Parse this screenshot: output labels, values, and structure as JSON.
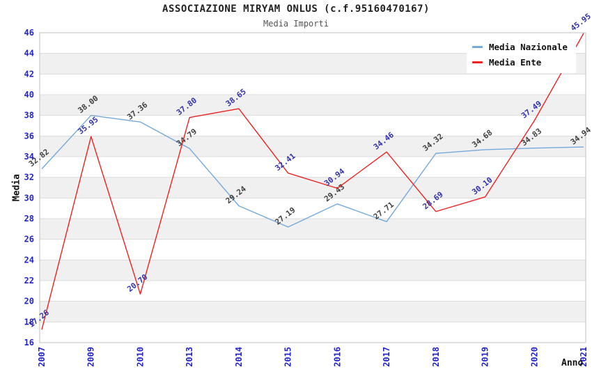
{
  "chart_data": {
    "type": "line",
    "title": "ASSOCIAZIONE MIRYAM ONLUS (c.f.95160470167)",
    "subtitle": "Media Importi",
    "xlabel": "Anno",
    "ylabel": "Media",
    "ylim": [
      16,
      46
    ],
    "yticks": [
      16,
      18,
      20,
      22,
      24,
      26,
      28,
      30,
      32,
      34,
      36,
      38,
      40,
      42,
      44,
      46
    ],
    "grid": "alternating horizontal bands with light gridlines every 2 units",
    "legend_position": "top-right",
    "categories": [
      "2007",
      "2009",
      "2010",
      "2013",
      "2014",
      "2015",
      "2016",
      "2017",
      "2018",
      "2019",
      "2020",
      "2021"
    ],
    "series": [
      {
        "name": "Media Nazionale",
        "color": "#74a9dc",
        "label_color": "#404040",
        "values": [
          32.82,
          38.0,
          37.36,
          34.79,
          29.24,
          27.19,
          29.43,
          27.71,
          34.32,
          34.68,
          34.83,
          34.94
        ]
      },
      {
        "name": "Media Ente",
        "color": "#ee2222",
        "label_color": "#3333aa",
        "values": [
          17.26,
          35.95,
          20.7,
          37.8,
          38.65,
          32.41,
          30.94,
          34.46,
          28.69,
          30.1,
          37.49,
          45.95
        ]
      }
    ],
    "colors": {
      "tick_label": "#2323cc",
      "band": "#f0f0f0",
      "grid_line": "#dcdcdc",
      "plot_border": "#c0c0c0",
      "background": "#ffffff"
    }
  }
}
